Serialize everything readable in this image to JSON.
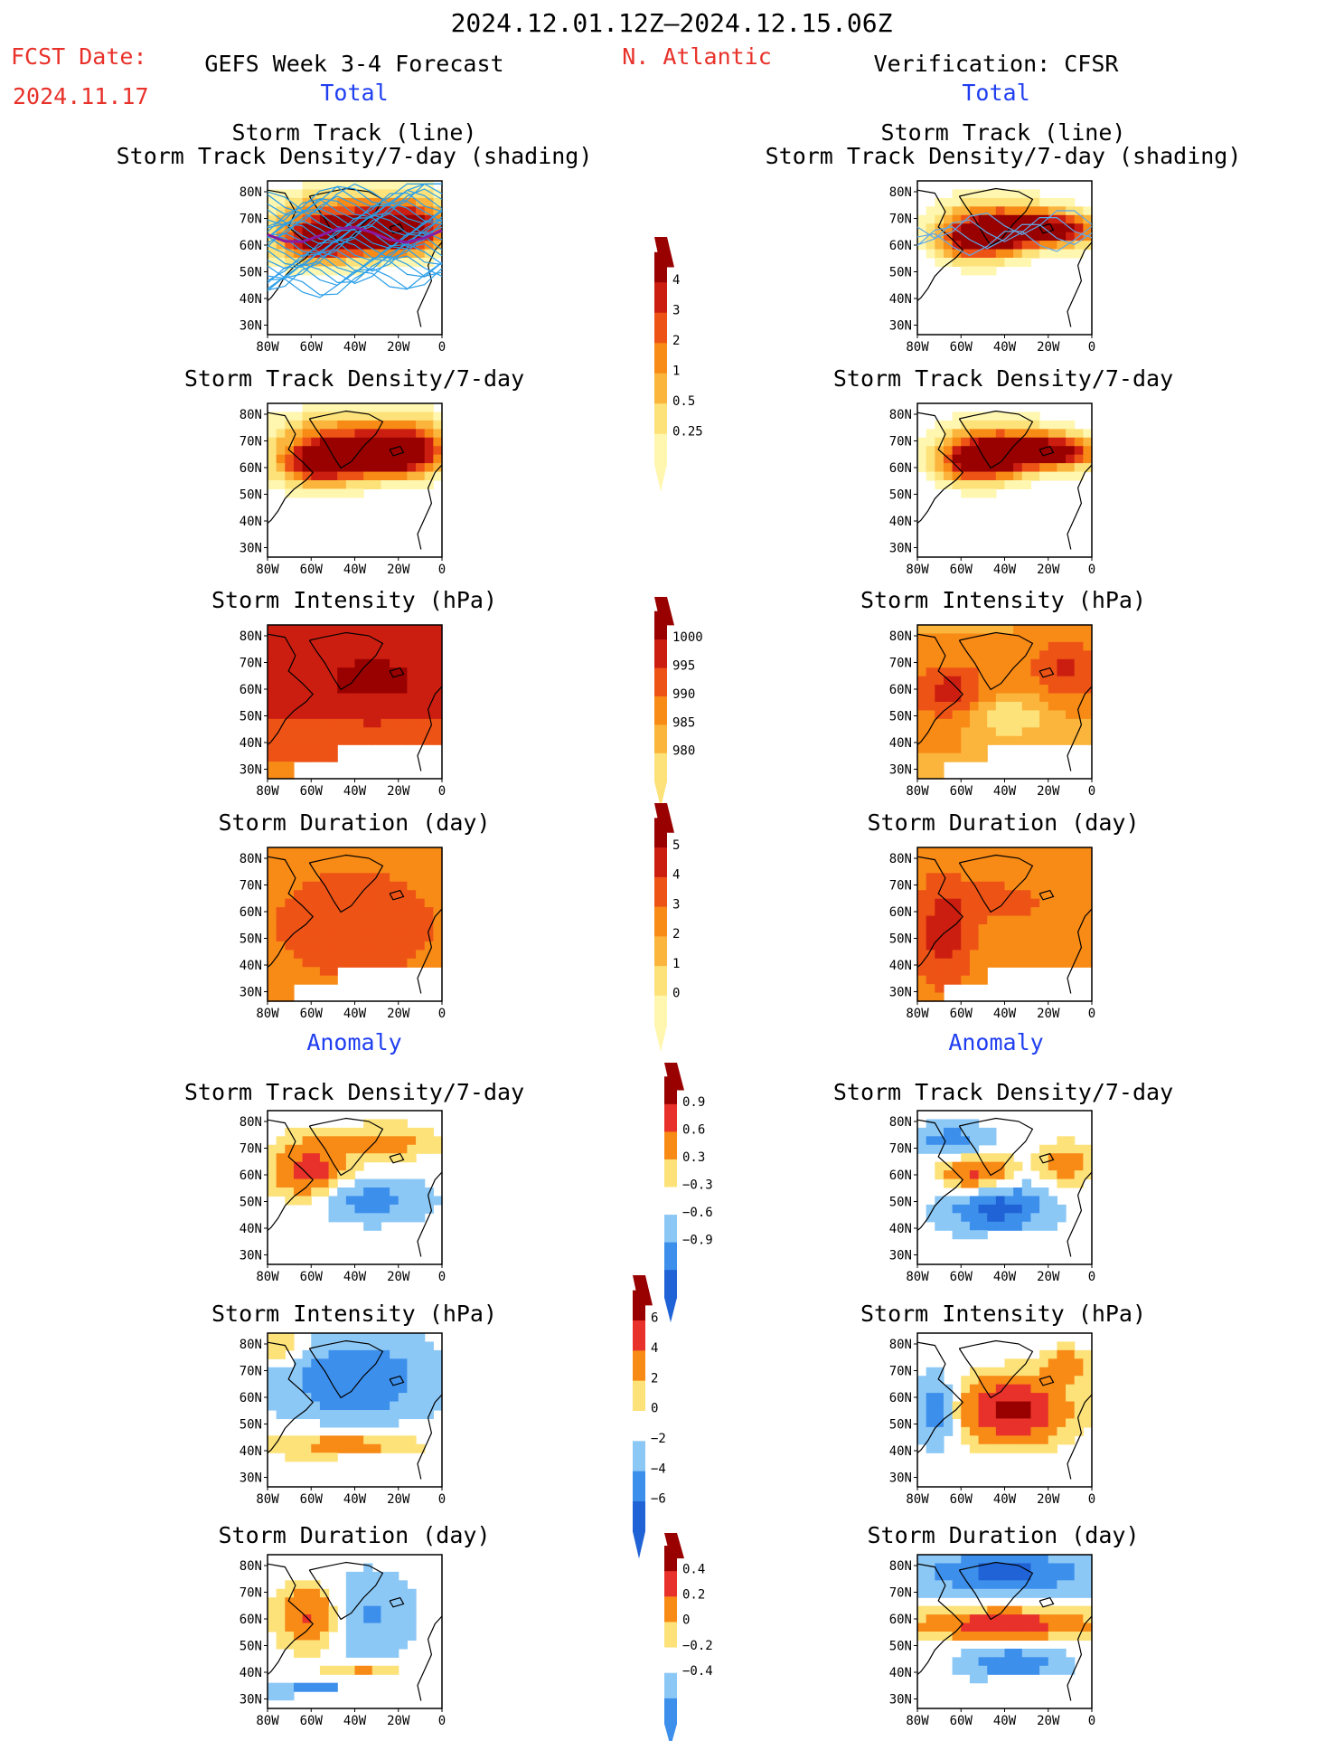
{
  "header": {
    "date_range": "2024.12.01.12Z–2024.12.15.06Z",
    "fcst_label": "FCST Date:",
    "fcst_date": "2024.11.17",
    "left_title": "GEFS Week 3-4 Forecast",
    "region": "N. Atlantic",
    "right_title": "Verification: CFSR",
    "total_label": "Total",
    "anomaly_label": "Anomaly"
  },
  "panel_titles": {
    "track_line": "Storm Track (line)",
    "track_shading": "Storm Track Density/7-day (shading)",
    "density": "Storm Track Density/7-day",
    "intensity": "Storm Intensity (hPa)",
    "duration": "Storm Duration (day)"
  },
  "map_axes": {
    "lat_labels": [
      "80N",
      "70N",
      "60N",
      "50N",
      "40N",
      "30N"
    ],
    "lon_labels": [
      "80W",
      "60W",
      "40W",
      "20W",
      "0"
    ]
  },
  "colorbars": [
    {
      "name": "density",
      "labels": [
        "4",
        "3",
        "2",
        "1",
        "0.5",
        "0.25"
      ]
    },
    {
      "name": "intensity",
      "labels": [
        "1000",
        "995",
        "990",
        "985",
        "980"
      ]
    },
    {
      "name": "duration",
      "labels": [
        "5",
        "4",
        "3",
        "2",
        "1",
        "0"
      ]
    },
    {
      "name": "density-anomaly",
      "labels": [
        "0.9",
        "0.6",
        "0.3",
        "−0.3",
        "−0.6",
        "−0.9"
      ]
    },
    {
      "name": "intensity-anomaly",
      "labels": [
        "6",
        "4",
        "2",
        "0",
        "−2",
        "−4",
        "−6"
      ]
    },
    {
      "name": "duration-anomaly",
      "labels": [
        "0.4",
        "0.2",
        "0",
        "−0.2",
        "−0.4"
      ]
    }
  ],
  "colors": {
    "title_red": "#e8312a",
    "title_blue": "#1f3ef0",
    "total_scale": [
      "#fff6b0",
      "#fde27a",
      "#fbb53c",
      "#f88a16",
      "#ee5316",
      "#cc1e10",
      "#990000"
    ],
    "anomaly_scale": [
      "#1f63d6",
      "#3d8fec",
      "#8cc8f6",
      "#ffffff",
      "#fde27a",
      "#f88a16",
      "#e8312a",
      "#990000"
    ],
    "track_forecast": "#2a9ee8",
    "track_forecast_mean": "#8a1aa0",
    "track_verification": "#5fa8e8"
  }
}
